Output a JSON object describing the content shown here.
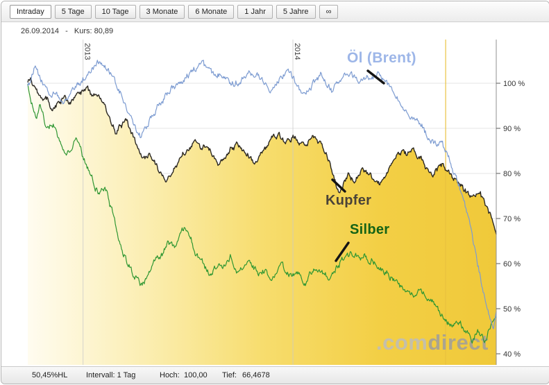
{
  "tabs": [
    {
      "label": "Intraday",
      "active": true
    },
    {
      "label": "5 Tage",
      "active": false
    },
    {
      "label": "10 Tage",
      "active": false
    },
    {
      "label": "3 Monate",
      "active": false
    },
    {
      "label": "6 Monate",
      "active": false
    },
    {
      "label": "1 Jahr",
      "active": false
    },
    {
      "label": "5 Jahre",
      "active": false
    },
    {
      "label": "∞",
      "active": false
    }
  ],
  "info": {
    "date": "26.09.2014",
    "separator": "-",
    "kurs": "Kurs: 80,89"
  },
  "watermark": {
    "prefix": ".com",
    "suffix": "direct",
    "prefix_color": "#bdbdbd",
    "suffix_color": "#9e9e9e"
  },
  "footer": {
    "hl": "50,45%HL",
    "interval": "Intervall: 1 Tag",
    "hoch_label": "Hoch:",
    "hoch_value": "100,00",
    "tief_label": "Tief:",
    "tief_value": "66,4678"
  },
  "chart_data": {
    "type": "line",
    "title": "",
    "y_axis": {
      "unit": "%",
      "range": [
        37.5,
        109.5
      ],
      "ticks": [
        {
          "value": 100,
          "label": "100 %"
        },
        {
          "value": 90,
          "label": "90 %"
        },
        {
          "value": 80,
          "label": "80 %"
        },
        {
          "value": 70,
          "label": "70 %"
        },
        {
          "value": 60,
          "label": "60 %"
        },
        {
          "value": 50,
          "label": "50 %"
        },
        {
          "value": 40,
          "label": "40 %"
        }
      ]
    },
    "x_axis": {
      "markers": [
        {
          "t": 0.118,
          "label": "2013"
        },
        {
          "t": 0.566,
          "label": "2014"
        }
      ],
      "highlight_line": {
        "t": 0.892,
        "color": "#e9c23f"
      }
    },
    "series": [
      {
        "id": "oel",
        "name": "Öl (Brent)",
        "color": "#7c9bd1",
        "label_color": "#9db6e8",
        "noise": 0.7,
        "points": [
          [
            0,
            99.5
          ],
          [
            0.008,
            101.5
          ],
          [
            0.016,
            103.3
          ],
          [
            0.022,
            101.8
          ],
          [
            0.03,
            100.2
          ],
          [
            0.04,
            98.8
          ],
          [
            0.05,
            96.8
          ],
          [
            0.058,
            98.4
          ],
          [
            0.068,
            96.2
          ],
          [
            0.078,
            95.6
          ],
          [
            0.088,
            97.4
          ],
          [
            0.1,
            98.8
          ],
          [
            0.112,
            100.2
          ],
          [
            0.125,
            101.6
          ],
          [
            0.14,
            103.6
          ],
          [
            0.152,
            105.2
          ],
          [
            0.162,
            104.2
          ],
          [
            0.172,
            102.6
          ],
          [
            0.185,
            100.4
          ],
          [
            0.198,
            97.6
          ],
          [
            0.208,
            95.2
          ],
          [
            0.218,
            92.4
          ],
          [
            0.232,
            89.6
          ],
          [
            0.242,
            88.2
          ],
          [
            0.252,
            90.2
          ],
          [
            0.265,
            92.6
          ],
          [
            0.278,
            94.8
          ],
          [
            0.295,
            97.2
          ],
          [
            0.31,
            98.8
          ],
          [
            0.325,
            100.4
          ],
          [
            0.34,
            101.8
          ],
          [
            0.355,
            103
          ],
          [
            0.372,
            104.4
          ],
          [
            0.385,
            103
          ],
          [
            0.398,
            101.4
          ],
          [
            0.412,
            102.6
          ],
          [
            0.428,
            101
          ],
          [
            0.442,
            99.6
          ],
          [
            0.458,
            101.2
          ],
          [
            0.472,
            103
          ],
          [
            0.488,
            101.8
          ],
          [
            0.502,
            100.4
          ],
          [
            0.515,
            98.9
          ],
          [
            0.53,
            100.1
          ],
          [
            0.543,
            101.6
          ],
          [
            0.553,
            103.4
          ],
          [
            0.565,
            101.8
          ],
          [
            0.577,
            99.4
          ],
          [
            0.587,
            97.2
          ],
          [
            0.598,
            98.6
          ],
          [
            0.612,
            100.1
          ],
          [
            0.625,
            101.4
          ],
          [
            0.638,
            99.9
          ],
          [
            0.65,
            98.5
          ],
          [
            0.662,
            99.6
          ],
          [
            0.675,
            101.1
          ],
          [
            0.688,
            102
          ],
          [
            0.702,
            101
          ],
          [
            0.716,
            100.1
          ],
          [
            0.73,
            101.4
          ],
          [
            0.745,
            102.4
          ],
          [
            0.758,
            101
          ],
          [
            0.772,
            99.2
          ],
          [
            0.785,
            97.3
          ],
          [
            0.798,
            95.6
          ],
          [
            0.812,
            94
          ],
          [
            0.826,
            92.1
          ],
          [
            0.84,
            90.2
          ],
          [
            0.852,
            88.6
          ],
          [
            0.864,
            87
          ],
          [
            0.872,
            85.8
          ],
          [
            0.882,
            86.8
          ],
          [
            0.892,
            84.6
          ],
          [
            0.902,
            82.4
          ],
          [
            0.912,
            79.6
          ],
          [
            0.922,
            76.6
          ],
          [
            0.932,
            72.8
          ],
          [
            0.942,
            68.6
          ],
          [
            0.952,
            64
          ],
          [
            0.962,
            59
          ],
          [
            0.972,
            54
          ],
          [
            0.981,
            50
          ],
          [
            0.989,
            47.2
          ],
          [
            0.994,
            45.8
          ],
          [
            1,
            49.4
          ]
        ]
      },
      {
        "id": "kupfer",
        "name": "Kupfer",
        "color": "#2b2822",
        "label_color": "#4a4338",
        "noise": 0.6,
        "fill": true,
        "fill_gradient": [
          "#fffcf0",
          "#fbeeb2",
          "#f7dd6e",
          "#f3cf45",
          "#f0c93a"
        ],
        "points": [
          [
            0,
            100
          ],
          [
            0.006,
            101
          ],
          [
            0.013,
            99.2
          ],
          [
            0.022,
            97.6
          ],
          [
            0.032,
            95.8
          ],
          [
            0.042,
            96.8
          ],
          [
            0.052,
            93.8
          ],
          [
            0.062,
            95.2
          ],
          [
            0.075,
            96.6
          ],
          [
            0.088,
            95.2
          ],
          [
            0.1,
            96.6
          ],
          [
            0.112,
            97.6
          ],
          [
            0.125,
            98.6
          ],
          [
            0.138,
            97.1
          ],
          [
            0.148,
            98
          ],
          [
            0.158,
            96.2
          ],
          [
            0.168,
            93.8
          ],
          [
            0.178,
            91.2
          ],
          [
            0.188,
            89.2
          ],
          [
            0.198,
            90.6
          ],
          [
            0.208,
            92
          ],
          [
            0.22,
            90
          ],
          [
            0.23,
            87.2
          ],
          [
            0.24,
            84.8
          ],
          [
            0.25,
            83
          ],
          [
            0.26,
            84.6
          ],
          [
            0.27,
            82.6
          ],
          [
            0.283,
            80.2
          ],
          [
            0.297,
            78.6
          ],
          [
            0.308,
            80.2
          ],
          [
            0.318,
            82
          ],
          [
            0.33,
            84
          ],
          [
            0.343,
            85.6
          ],
          [
            0.357,
            86.6
          ],
          [
            0.37,
            85.1
          ],
          [
            0.382,
            86.1
          ],
          [
            0.395,
            84.2
          ],
          [
            0.408,
            81.8
          ],
          [
            0.42,
            83.2
          ],
          [
            0.433,
            85.4
          ],
          [
            0.448,
            86.6
          ],
          [
            0.462,
            85.1
          ],
          [
            0.473,
            83.6
          ],
          [
            0.484,
            81.8
          ],
          [
            0.497,
            84
          ],
          [
            0.51,
            86
          ],
          [
            0.523,
            87.6
          ],
          [
            0.538,
            88.4
          ],
          [
            0.55,
            87.1
          ],
          [
            0.563,
            88
          ],
          [
            0.577,
            87
          ],
          [
            0.588,
            85.6
          ],
          [
            0.6,
            87
          ],
          [
            0.613,
            88
          ],
          [
            0.627,
            86.6
          ],
          [
            0.638,
            84.6
          ],
          [
            0.645,
            82.2
          ],
          [
            0.653,
            79.4
          ],
          [
            0.66,
            76.8
          ],
          [
            0.666,
            75.6
          ],
          [
            0.675,
            78
          ],
          [
            0.685,
            79.6
          ],
          [
            0.695,
            78.1
          ],
          [
            0.705,
            80
          ],
          [
            0.716,
            81
          ],
          [
            0.729,
            80.1
          ],
          [
            0.74,
            78.6
          ],
          [
            0.751,
            77.6
          ],
          [
            0.764,
            79.6
          ],
          [
            0.776,
            82
          ],
          [
            0.789,
            84
          ],
          [
            0.8,
            85
          ],
          [
            0.81,
            84.1
          ],
          [
            0.821,
            85
          ],
          [
            0.832,
            84
          ],
          [
            0.843,
            82.6
          ],
          [
            0.854,
            80.6
          ],
          [
            0.864,
            79.2
          ],
          [
            0.874,
            80.6
          ],
          [
            0.884,
            82
          ],
          [
            0.894,
            81
          ],
          [
            0.904,
            79.6
          ],
          [
            0.914,
            78.1
          ],
          [
            0.924,
            77
          ],
          [
            0.934,
            76
          ],
          [
            0.944,
            75
          ],
          [
            0.954,
            74.6
          ],
          [
            0.963,
            75.6
          ],
          [
            0.972,
            74.1
          ],
          [
            0.981,
            72.6
          ],
          [
            0.99,
            70.2
          ],
          [
            1,
            66.5
          ]
        ]
      },
      {
        "id": "silber",
        "name": "Silber",
        "color": "#2e9632",
        "label_color": "#156315",
        "noise": 0.7,
        "points": [
          [
            0,
            100
          ],
          [
            0.004,
            98
          ],
          [
            0.01,
            95.2
          ],
          [
            0.018,
            93
          ],
          [
            0.026,
            95.4
          ],
          [
            0.034,
            92.2
          ],
          [
            0.044,
            90
          ],
          [
            0.054,
            91.4
          ],
          [
            0.064,
            88.2
          ],
          [
            0.074,
            86
          ],
          [
            0.084,
            84.6
          ],
          [
            0.094,
            86.4
          ],
          [
            0.104,
            87.9
          ],
          [
            0.114,
            85.1
          ],
          [
            0.124,
            82.2
          ],
          [
            0.134,
            79.6
          ],
          [
            0.144,
            77.1
          ],
          [
            0.154,
            75
          ],
          [
            0.164,
            77.4
          ],
          [
            0.174,
            73.2
          ],
          [
            0.184,
            70
          ],
          [
            0.194,
            66.2
          ],
          [
            0.204,
            62.6
          ],
          [
            0.214,
            60
          ],
          [
            0.224,
            58
          ],
          [
            0.234,
            56.2
          ],
          [
            0.244,
            55
          ],
          [
            0.254,
            57.4
          ],
          [
            0.264,
            59.8
          ],
          [
            0.274,
            61.8
          ],
          [
            0.284,
            61
          ],
          [
            0.294,
            63.4
          ],
          [
            0.304,
            65
          ],
          [
            0.314,
            63.6
          ],
          [
            0.324,
            66.4
          ],
          [
            0.334,
            67.9
          ],
          [
            0.342,
            66
          ],
          [
            0.352,
            64
          ],
          [
            0.362,
            62
          ],
          [
            0.372,
            60.6
          ],
          [
            0.382,
            58.6
          ],
          [
            0.392,
            57.6
          ],
          [
            0.402,
            59
          ],
          [
            0.412,
            60.4
          ],
          [
            0.422,
            59.5
          ],
          [
            0.432,
            61
          ],
          [
            0.442,
            58.6
          ],
          [
            0.452,
            57.6
          ],
          [
            0.462,
            59.4
          ],
          [
            0.472,
            61
          ],
          [
            0.482,
            59.5
          ],
          [
            0.492,
            58
          ],
          [
            0.502,
            59
          ],
          [
            0.512,
            57.6
          ],
          [
            0.522,
            56.6
          ],
          [
            0.532,
            58
          ],
          [
            0.542,
            59.4
          ],
          [
            0.552,
            58
          ],
          [
            0.562,
            57
          ],
          [
            0.572,
            58.4
          ],
          [
            0.582,
            57
          ],
          [
            0.592,
            56
          ],
          [
            0.602,
            57.4
          ],
          [
            0.614,
            59
          ],
          [
            0.628,
            58
          ],
          [
            0.642,
            57
          ],
          [
            0.654,
            58.4
          ],
          [
            0.664,
            60
          ],
          [
            0.676,
            61.4
          ],
          [
            0.69,
            62
          ],
          [
            0.704,
            61.5
          ],
          [
            0.718,
            62
          ],
          [
            0.733,
            61
          ],
          [
            0.748,
            59.6
          ],
          [
            0.762,
            58.1
          ],
          [
            0.776,
            57
          ],
          [
            0.79,
            55.6
          ],
          [
            0.804,
            54.1
          ],
          [
            0.818,
            53
          ],
          [
            0.832,
            54.4
          ],
          [
            0.846,
            53
          ],
          [
            0.86,
            51.6
          ],
          [
            0.872,
            50.1
          ],
          [
            0.884,
            48.6
          ],
          [
            0.896,
            47
          ],
          [
            0.908,
            46
          ],
          [
            0.918,
            47.4
          ],
          [
            0.928,
            46
          ],
          [
            0.938,
            44.6
          ],
          [
            0.948,
            43.6
          ],
          [
            0.958,
            45
          ],
          [
            0.968,
            44
          ],
          [
            0.978,
            43
          ],
          [
            0.985,
            45.4
          ],
          [
            0.992,
            47
          ],
          [
            1,
            48.4
          ]
        ]
      }
    ],
    "annotations": [
      {
        "series": "oel",
        "text": "Öl (Brent)",
        "x": 498,
        "y": 70,
        "pointer": [
          528,
          100,
          551,
          118
        ]
      },
      {
        "series": "kupfer",
        "text": "Kupfer",
        "x": 467,
        "y": 276,
        "pointer": [
          477,
          257,
          495,
          274
        ]
      },
      {
        "series": "silber",
        "text": "Silber",
        "x": 502,
        "y": 318,
        "pointer": [
          500,
          348,
          482,
          374
        ]
      }
    ],
    "legend_position": "none",
    "grid": true
  }
}
